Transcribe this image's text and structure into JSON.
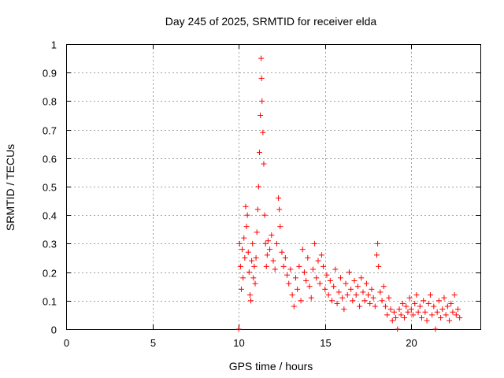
{
  "chart_data": {
    "type": "scatter",
    "title": "Day 245 of 2025, SRMTID for receiver elda",
    "xlabel": "GPS time / hours",
    "ylabel": "SRMTID / TECUs",
    "xlim": [
      0,
      24
    ],
    "ylim": [
      0,
      1
    ],
    "xticks": [
      0,
      5,
      10,
      15,
      20
    ],
    "yticks": [
      0,
      0.1,
      0.2,
      0.3,
      0.4,
      0.5,
      0.6,
      0.7,
      0.8,
      0.9,
      1
    ],
    "xtick_labels": [
      "0",
      "5",
      "10",
      "15",
      "20"
    ],
    "ytick_labels": [
      "0",
      "0.1",
      "0.2",
      "0.3",
      "0.4",
      "0.5",
      "0.6",
      "0.7",
      "0.8",
      "0.9",
      "1"
    ],
    "grid": true,
    "marker": "plus",
    "color": "#ff0000",
    "series": [
      {
        "name": "SRMTID",
        "points": [
          [
            10.0,
            0.0
          ],
          [
            10.05,
            0.3
          ],
          [
            10.1,
            0.22
          ],
          [
            10.15,
            0.14
          ],
          [
            10.2,
            0.28
          ],
          [
            10.25,
            0.18
          ],
          [
            10.3,
            0.32
          ],
          [
            10.35,
            0.25
          ],
          [
            10.4,
            0.43
          ],
          [
            10.45,
            0.36
          ],
          [
            10.5,
            0.4
          ],
          [
            10.55,
            0.27
          ],
          [
            10.6,
            0.2
          ],
          [
            10.65,
            0.12
          ],
          [
            10.7,
            0.1
          ],
          [
            10.75,
            0.24
          ],
          [
            10.8,
            0.3
          ],
          [
            10.85,
            0.18
          ],
          [
            10.9,
            0.22
          ],
          [
            10.95,
            0.16
          ],
          [
            11.0,
            0.25
          ],
          [
            11.05,
            0.34
          ],
          [
            11.1,
            0.42
          ],
          [
            11.15,
            0.5
          ],
          [
            11.2,
            0.62
          ],
          [
            11.25,
            0.75
          ],
          [
            11.3,
            0.95
          ],
          [
            11.32,
            0.88
          ],
          [
            11.35,
            0.8
          ],
          [
            11.4,
            0.69
          ],
          [
            11.45,
            0.58
          ],
          [
            11.5,
            0.4
          ],
          [
            11.55,
            0.3
          ],
          [
            11.6,
            0.22
          ],
          [
            11.65,
            0.26
          ],
          [
            11.7,
            0.31
          ],
          [
            11.8,
            0.28
          ],
          [
            11.9,
            0.33
          ],
          [
            12.0,
            0.24
          ],
          [
            12.1,
            0.21
          ],
          [
            12.2,
            0.3
          ],
          [
            12.3,
            0.46
          ],
          [
            12.35,
            0.42
          ],
          [
            12.4,
            0.36
          ],
          [
            12.5,
            0.27
          ],
          [
            12.6,
            0.22
          ],
          [
            12.7,
            0.25
          ],
          [
            12.8,
            0.19
          ],
          [
            12.9,
            0.16
          ],
          [
            13.0,
            0.21
          ],
          [
            13.1,
            0.12
          ],
          [
            13.2,
            0.08
          ],
          [
            13.3,
            0.18
          ],
          [
            13.4,
            0.14
          ],
          [
            13.5,
            0.22
          ],
          [
            13.6,
            0.1
          ],
          [
            13.7,
            0.28
          ],
          [
            13.8,
            0.2
          ],
          [
            13.9,
            0.17
          ],
          [
            14.0,
            0.25
          ],
          [
            14.1,
            0.15
          ],
          [
            14.2,
            0.11
          ],
          [
            14.3,
            0.21
          ],
          [
            14.4,
            0.3
          ],
          [
            14.5,
            0.18
          ],
          [
            14.6,
            0.24
          ],
          [
            14.7,
            0.16
          ],
          [
            14.8,
            0.26
          ],
          [
            14.9,
            0.22
          ],
          [
            15.0,
            0.14
          ],
          [
            15.1,
            0.19
          ],
          [
            15.2,
            0.12
          ],
          [
            15.3,
            0.17
          ],
          [
            15.4,
            0.1
          ],
          [
            15.5,
            0.15
          ],
          [
            15.6,
            0.21
          ],
          [
            15.7,
            0.09
          ],
          [
            15.8,
            0.13
          ],
          [
            15.9,
            0.18
          ],
          [
            16.0,
            0.11
          ],
          [
            16.1,
            0.07
          ],
          [
            16.2,
            0.16
          ],
          [
            16.3,
            0.12
          ],
          [
            16.4,
            0.2
          ],
          [
            16.5,
            0.14
          ],
          [
            16.6,
            0.1
          ],
          [
            16.7,
            0.17
          ],
          [
            16.8,
            0.12
          ],
          [
            16.9,
            0.15
          ],
          [
            17.0,
            0.08
          ],
          [
            17.1,
            0.18
          ],
          [
            17.2,
            0.13
          ],
          [
            17.3,
            0.1
          ],
          [
            17.4,
            0.16
          ],
          [
            17.5,
            0.12
          ],
          [
            17.6,
            0.09
          ],
          [
            17.7,
            0.14
          ],
          [
            17.8,
            0.11
          ],
          [
            17.9,
            0.08
          ],
          [
            18.0,
            0.26
          ],
          [
            18.05,
            0.3
          ],
          [
            18.1,
            0.22
          ],
          [
            18.2,
            0.13
          ],
          [
            18.3,
            0.1
          ],
          [
            18.4,
            0.15
          ],
          [
            18.5,
            0.08
          ],
          [
            18.6,
            0.05
          ],
          [
            18.7,
            0.11
          ],
          [
            18.8,
            0.07
          ],
          [
            18.9,
            0.03
          ],
          [
            19.0,
            0.06
          ],
          [
            19.1,
            0.04
          ],
          [
            19.2,
            0.0
          ],
          [
            19.3,
            0.07
          ],
          [
            19.4,
            0.05
          ],
          [
            19.5,
            0.09
          ],
          [
            19.6,
            0.04
          ],
          [
            19.7,
            0.08
          ],
          [
            19.8,
            0.06
          ],
          [
            19.9,
            0.11
          ],
          [
            20.0,
            0.07
          ],
          [
            20.1,
            0.05
          ],
          [
            20.2,
            0.09
          ],
          [
            20.3,
            0.12
          ],
          [
            20.4,
            0.06
          ],
          [
            20.5,
            0.08
          ],
          [
            20.6,
            0.04
          ],
          [
            20.7,
            0.1
          ],
          [
            20.8,
            0.06
          ],
          [
            20.9,
            0.03
          ],
          [
            21.0,
            0.09
          ],
          [
            21.1,
            0.12
          ],
          [
            21.2,
            0.05
          ],
          [
            21.3,
            0.08
          ],
          [
            21.4,
            0.0
          ],
          [
            21.5,
            0.06
          ],
          [
            21.6,
            0.1
          ],
          [
            21.7,
            0.04
          ],
          [
            21.8,
            0.07
          ],
          [
            21.9,
            0.11
          ],
          [
            22.0,
            0.05
          ],
          [
            22.1,
            0.08
          ],
          [
            22.2,
            0.03
          ],
          [
            22.3,
            0.09
          ],
          [
            22.4,
            0.06
          ],
          [
            22.5,
            0.12
          ],
          [
            22.6,
            0.05
          ],
          [
            22.7,
            0.07
          ],
          [
            22.8,
            0.04
          ]
        ]
      }
    ]
  }
}
